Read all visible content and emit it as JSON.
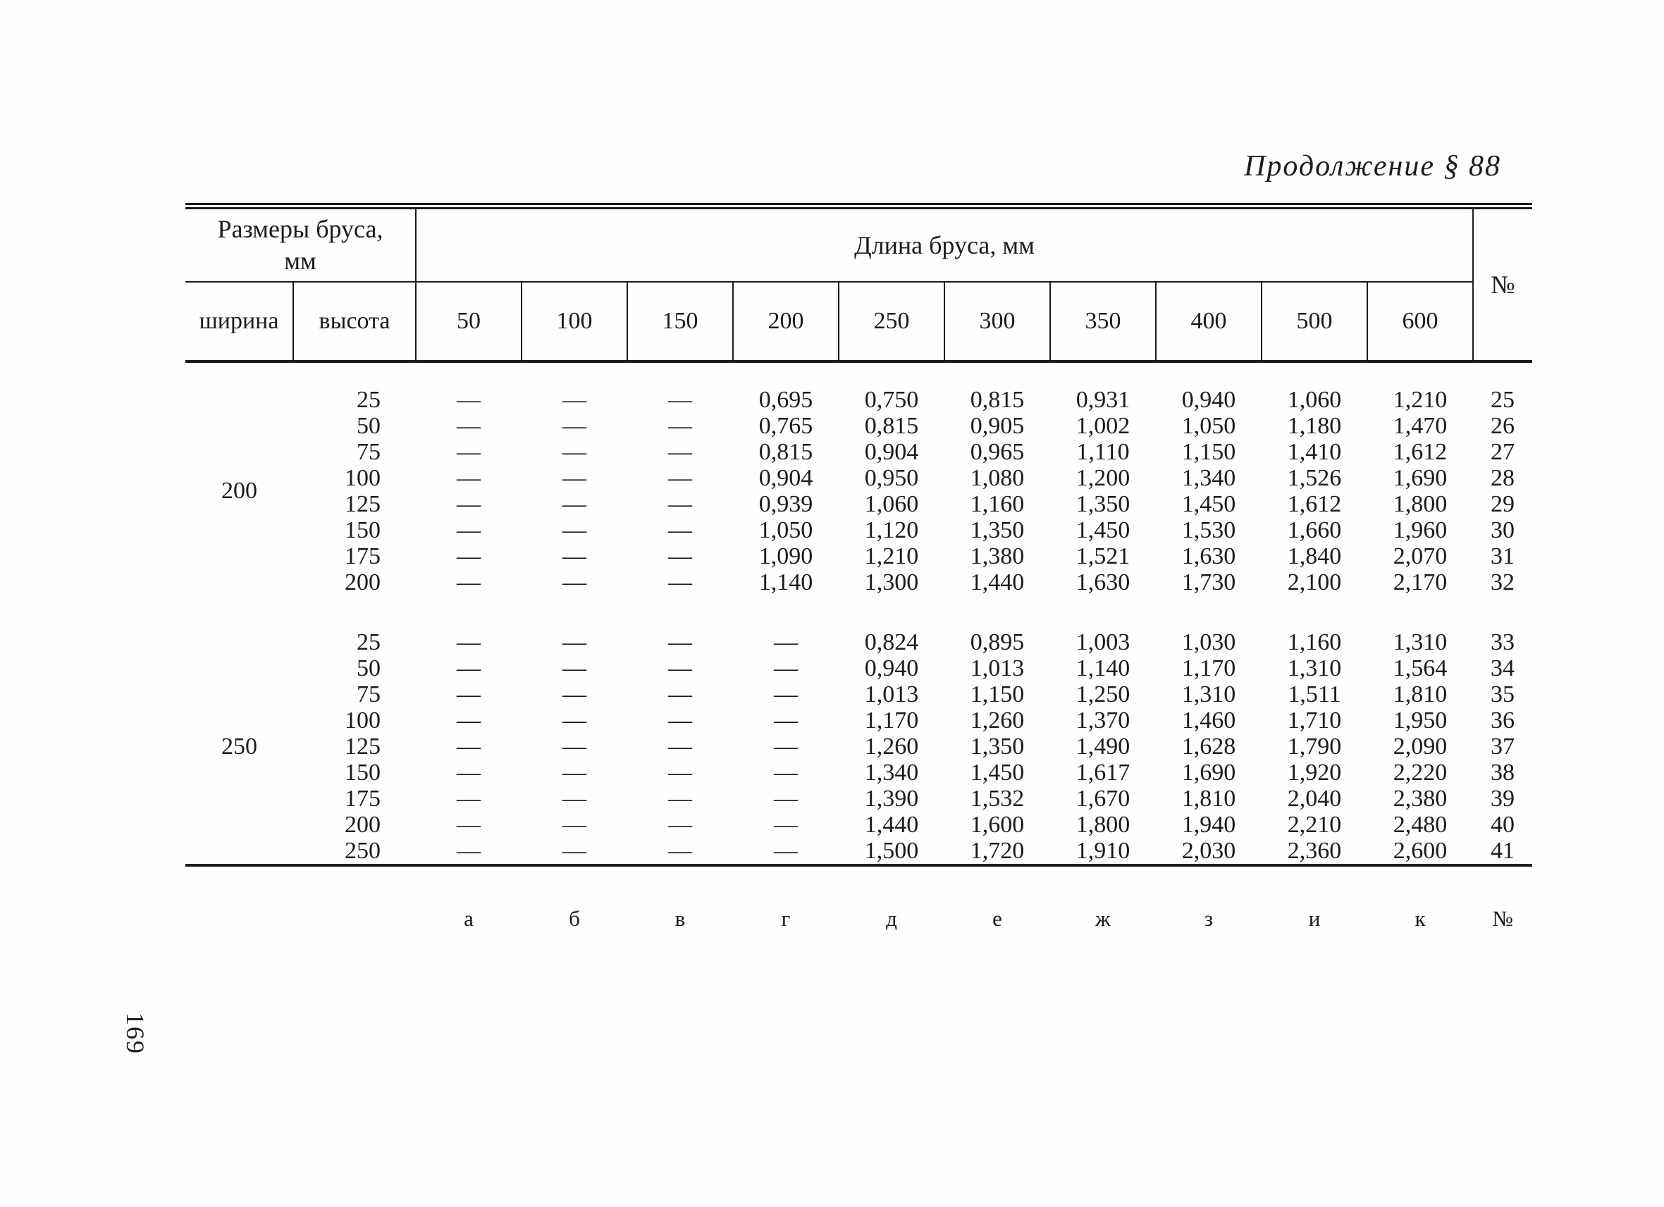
{
  "page": {
    "title": "Продолжение § 88",
    "page_number": "169",
    "ink_color": "#1b1b1b",
    "paper_color": "#fefefe"
  },
  "table": {
    "header": {
      "size_group": "Размеры бруса, мм",
      "length_group": "Длина бруса, мм",
      "width_label": "ширина",
      "height_label": "высота",
      "length_columns": [
        "50",
        "100",
        "150",
        "200",
        "250",
        "300",
        "350",
        "400",
        "500",
        "600"
      ],
      "number_label": "№"
    },
    "blocks": [
      {
        "width": "200",
        "rows": [
          {
            "height": "25",
            "values": [
              "—",
              "—",
              "—",
              "0,695",
              "0,750",
              "0,815",
              "0,931",
              "0,940",
              "1,060",
              "1,210"
            ],
            "num": "25"
          },
          {
            "height": "50",
            "values": [
              "—",
              "—",
              "—",
              "0,765",
              "0,815",
              "0,905",
              "1,002",
              "1,050",
              "1,180",
              "1,470"
            ],
            "num": "26"
          },
          {
            "height": "75",
            "values": [
              "—",
              "—",
              "—",
              "0,815",
              "0,904",
              "0,965",
              "1,110",
              "1,150",
              "1,410",
              "1,612"
            ],
            "num": "27"
          },
          {
            "height": "100",
            "values": [
              "—",
              "—",
              "—",
              "0,904",
              "0,950",
              "1,080",
              "1,200",
              "1,340",
              "1,526",
              "1,690"
            ],
            "num": "28"
          },
          {
            "height": "125",
            "values": [
              "—",
              "—",
              "—",
              "0,939",
              "1,060",
              "1,160",
              "1,350",
              "1,450",
              "1,612",
              "1,800"
            ],
            "num": "29"
          },
          {
            "height": "150",
            "values": [
              "—",
              "—",
              "—",
              "1,050",
              "1,120",
              "1,350",
              "1,450",
              "1,530",
              "1,660",
              "1,960"
            ],
            "num": "30"
          },
          {
            "height": "175",
            "values": [
              "—",
              "—",
              "—",
              "1,090",
              "1,210",
              "1,380",
              "1,521",
              "1,630",
              "1,840",
              "2,070"
            ],
            "num": "31"
          },
          {
            "height": "200",
            "values": [
              "—",
              "—",
              "—",
              "1,140",
              "1,300",
              "1,440",
              "1,630",
              "1,730",
              "2,100",
              "2,170"
            ],
            "num": "32"
          }
        ]
      },
      {
        "width": "250",
        "rows": [
          {
            "height": "25",
            "values": [
              "—",
              "—",
              "—",
              "—",
              "0,824",
              "0,895",
              "1,003",
              "1,030",
              "1,160",
              "1,310"
            ],
            "num": "33"
          },
          {
            "height": "50",
            "values": [
              "—",
              "—",
              "—",
              "—",
              "0,940",
              "1,013",
              "1,140",
              "1,170",
              "1,310",
              "1,564"
            ],
            "num": "34"
          },
          {
            "height": "75",
            "values": [
              "—",
              "—",
              "—",
              "—",
              "1,013",
              "1,150",
              "1,250",
              "1,310",
              "1,511",
              "1,810"
            ],
            "num": "35"
          },
          {
            "height": "100",
            "values": [
              "—",
              "—",
              "—",
              "—",
              "1,170",
              "1,260",
              "1,370",
              "1,460",
              "1,710",
              "1,950"
            ],
            "num": "36"
          },
          {
            "height": "125",
            "values": [
              "—",
              "—",
              "—",
              "—",
              "1,260",
              "1,350",
              "1,490",
              "1,628",
              "1,790",
              "2,090"
            ],
            "num": "37"
          },
          {
            "height": "150",
            "values": [
              "—",
              "—",
              "—",
              "—",
              "1,340",
              "1,450",
              "1,617",
              "1,690",
              "1,920",
              "2,220"
            ],
            "num": "38"
          },
          {
            "height": "175",
            "values": [
              "—",
              "—",
              "—",
              "—",
              "1,390",
              "1,532",
              "1,670",
              "1,810",
              "2,040",
              "2,380"
            ],
            "num": "39"
          },
          {
            "height": "200",
            "values": [
              "—",
              "—",
              "—",
              "—",
              "1,440",
              "1,600",
              "1,800",
              "1,940",
              "2,210",
              "2,480"
            ],
            "num": "40"
          },
          {
            "height": "250",
            "values": [
              "—",
              "—",
              "—",
              "—",
              "1,500",
              "1,720",
              "1,910",
              "2,030",
              "2,360",
              "2,600"
            ],
            "num": "41"
          }
        ]
      }
    ],
    "footer_letters": [
      "а",
      "б",
      "в",
      "г",
      "д",
      "е",
      "ж",
      "з",
      "и",
      "к",
      "№"
    ]
  }
}
